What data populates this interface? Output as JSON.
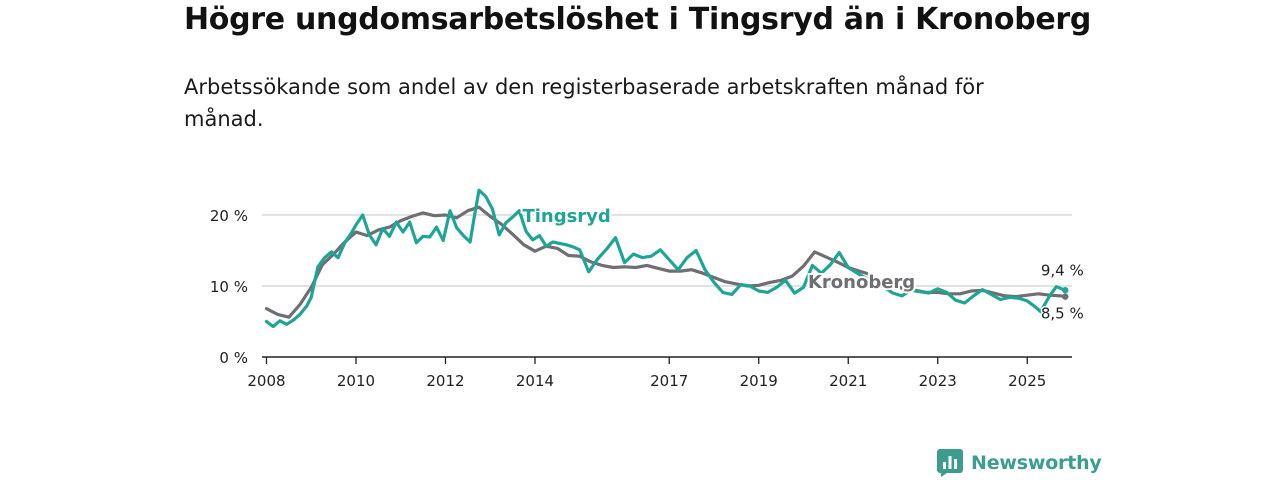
{
  "header": {
    "title": "Högre ungdomsarbetslöshet i Tingsryd än i Kronoberg",
    "subtitle": "Arbetssökande som andel av den registerbaserade arbetskraften månad för månad."
  },
  "brand": {
    "name": "Newsworthy",
    "icon": "newsworthy-bar-chart-icon",
    "color": "#3c9d8f"
  },
  "chart_data": {
    "type": "line",
    "title": "Högre ungdomsarbetslöshet i Tingsryd än i Kronoberg",
    "subtitle": "Arbetssökande som andel av den registerbaserade arbetskraften månad för månad.",
    "xlabel": "",
    "ylabel": "",
    "xlim": [
      2007.9,
      2026.0
    ],
    "ylim": [
      0,
      20
    ],
    "x_ticks": [
      2008,
      2010,
      2012,
      2014,
      2017,
      2019,
      2021,
      2023,
      2025
    ],
    "x_tick_labels": [
      "2008",
      "2010",
      "2012",
      "2014",
      "2017",
      "2019",
      "2021",
      "2023",
      "2025"
    ],
    "y_ticks": [
      0,
      10,
      20
    ],
    "y_tick_labels": [
      "0 %",
      "10 %",
      "20 %"
    ],
    "grid": true,
    "series": [
      {
        "name": "Kronoberg",
        "label": "Kronoberg",
        "color": "#6e6e73",
        "label_at": [
          2020.1,
          10.7
        ],
        "end_label": "8,5 %",
        "x": [
          2008.0,
          2008.25,
          2008.5,
          2008.75,
          2009.0,
          2009.25,
          2009.5,
          2009.75,
          2010.0,
          2010.25,
          2010.5,
          2010.75,
          2011.0,
          2011.25,
          2011.5,
          2011.75,
          2012.0,
          2012.25,
          2012.5,
          2012.75,
          2013.0,
          2013.25,
          2013.5,
          2013.75,
          2014.0,
          2014.25,
          2014.5,
          2014.75,
          2015.0,
          2015.25,
          2015.5,
          2015.75,
          2016.0,
          2016.25,
          2016.5,
          2016.75,
          2017.0,
          2017.25,
          2017.5,
          2017.75,
          2018.0,
          2018.25,
          2018.5,
          2018.75,
          2019.0,
          2019.25,
          2019.5,
          2019.75,
          2020.0,
          2020.25,
          2020.5,
          2020.75,
          2021.0,
          2021.25,
          2021.5,
          2021.75,
          2022.0,
          2022.25,
          2022.5,
          2022.75,
          2023.0,
          2023.25,
          2023.5,
          2023.75,
          2024.0,
          2024.25,
          2024.5,
          2024.75,
          2025.0,
          2025.25,
          2025.5,
          2025.75,
          2025.85
        ],
        "values": [
          6.8,
          6.0,
          5.6,
          7.4,
          9.8,
          13.0,
          14.5,
          16.2,
          17.6,
          17.1,
          17.9,
          18.3,
          19.2,
          19.8,
          20.3,
          19.9,
          20.0,
          19.6,
          20.6,
          21.1,
          19.8,
          18.7,
          17.3,
          15.8,
          14.9,
          15.6,
          15.3,
          14.3,
          14.2,
          13.4,
          12.9,
          12.6,
          12.7,
          12.6,
          12.9,
          12.5,
          12.1,
          12.1,
          12.3,
          11.8,
          11.2,
          10.6,
          10.3,
          10.0,
          10.1,
          10.5,
          10.8,
          11.4,
          12.8,
          14.8,
          14.1,
          13.4,
          12.6,
          12.1,
          11.6,
          10.6,
          10.1,
          9.6,
          9.4,
          9.1,
          9.1,
          8.9,
          8.9,
          9.3,
          9.4,
          9.0,
          8.6,
          8.5,
          8.7,
          8.9,
          8.7,
          8.6,
          8.5
        ]
      },
      {
        "name": "Tingsryd",
        "label": "Tingsryd",
        "color": "#1fa596",
        "label_at": [
          2013.72,
          20.0
        ],
        "end_label": "9,4 %",
        "x": [
          2008.0,
          2008.15,
          2008.3,
          2008.45,
          2008.6,
          2008.75,
          2008.9,
          2009.0,
          2009.15,
          2009.3,
          2009.45,
          2009.6,
          2009.75,
          2009.9,
          2010.0,
          2010.15,
          2010.3,
          2010.45,
          2010.6,
          2010.75,
          2010.9,
          2011.05,
          2011.2,
          2011.35,
          2011.5,
          2011.65,
          2011.8,
          2011.95,
          2012.1,
          2012.25,
          2012.4,
          2012.55,
          2012.65,
          2012.75,
          2012.9,
          2013.05,
          2013.2,
          2013.35,
          2013.5,
          2013.65,
          2013.8,
          2013.95,
          2014.1,
          2014.25,
          2014.4,
          2014.55,
          2014.7,
          2014.85,
          2015.0,
          2015.2,
          2015.4,
          2015.6,
          2015.8,
          2016.0,
          2016.2,
          2016.4,
          2016.6,
          2016.8,
          2017.0,
          2017.2,
          2017.4,
          2017.6,
          2017.8,
          2018.0,
          2018.2,
          2018.4,
          2018.6,
          2018.8,
          2019.0,
          2019.2,
          2019.4,
          2019.6,
          2019.8,
          2020.0,
          2020.2,
          2020.4,
          2020.6,
          2020.8,
          2021.0,
          2021.2,
          2021.4,
          2021.6,
          2021.8,
          2022.0,
          2022.2,
          2022.4,
          2022.6,
          2022.8,
          2023.0,
          2023.2,
          2023.4,
          2023.6,
          2023.8,
          2024.0,
          2024.2,
          2024.4,
          2024.6,
          2024.8,
          2025.0,
          2025.15,
          2025.3,
          2025.5,
          2025.65,
          2025.85
        ],
        "values": [
          5.0,
          4.3,
          5.1,
          4.6,
          5.2,
          6.0,
          7.2,
          8.4,
          12.7,
          14.0,
          14.8,
          14.0,
          16.1,
          17.5,
          18.6,
          20.0,
          17.2,
          15.8,
          18.1,
          17.0,
          19.0,
          17.6,
          19.0,
          16.1,
          17.0,
          16.9,
          18.3,
          16.4,
          20.6,
          18.2,
          17.1,
          16.2,
          20.0,
          23.5,
          22.6,
          20.8,
          17.2,
          18.9,
          19.7,
          20.6,
          17.7,
          16.5,
          17.1,
          15.6,
          16.2,
          16.0,
          15.8,
          15.5,
          15.1,
          12.0,
          13.8,
          15.2,
          16.8,
          13.3,
          14.5,
          14.0,
          14.2,
          15.1,
          13.7,
          12.3,
          14.0,
          15.0,
          12.3,
          10.5,
          9.1,
          8.8,
          10.2,
          10.0,
          9.3,
          9.1,
          9.8,
          10.8,
          9.0,
          9.8,
          12.9,
          11.8,
          13.0,
          14.7,
          12.6,
          11.8,
          11.1,
          10.3,
          9.8,
          9.0,
          8.6,
          9.4,
          9.2,
          9.0,
          9.6,
          9.1,
          8.0,
          7.6,
          8.6,
          9.5,
          8.8,
          8.1,
          8.4,
          8.3,
          7.9,
          7.2,
          6.4,
          8.6,
          9.9,
          9.4
        ]
      }
    ]
  }
}
